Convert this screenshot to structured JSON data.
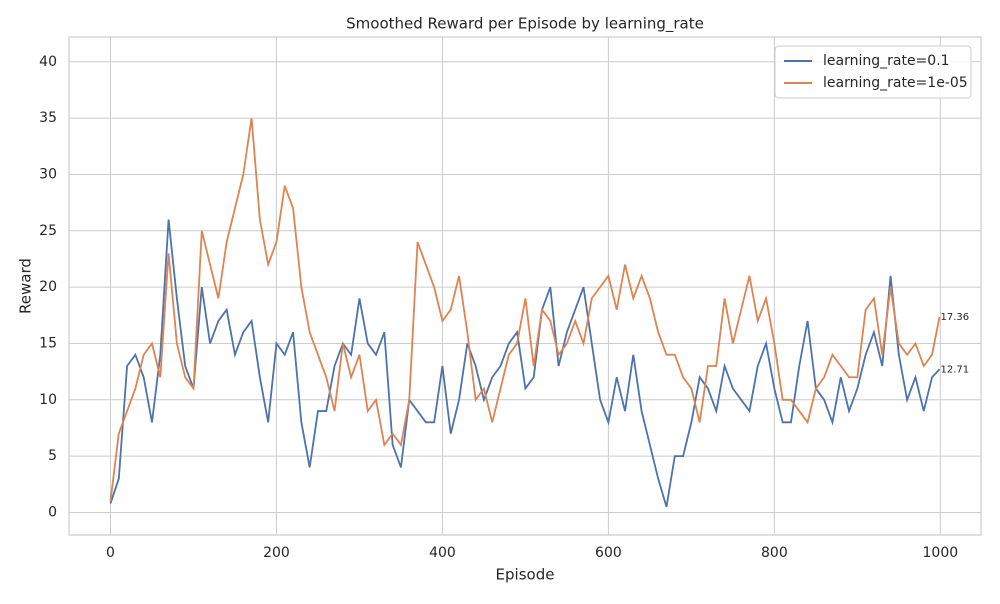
{
  "chart_data": {
    "type": "line",
    "title": "Smoothed Reward per Episode by learning_rate",
    "xlabel": "Episode",
    "ylabel": "Reward",
    "x": [
      0,
      10,
      20,
      30,
      40,
      50,
      60,
      70,
      80,
      90,
      100,
      110,
      120,
      130,
      140,
      150,
      160,
      170,
      180,
      190,
      200,
      210,
      220,
      230,
      240,
      250,
      260,
      270,
      280,
      290,
      300,
      310,
      320,
      330,
      340,
      350,
      360,
      370,
      380,
      390,
      400,
      410,
      420,
      430,
      440,
      450,
      460,
      470,
      480,
      490,
      500,
      510,
      520,
      530,
      540,
      550,
      560,
      570,
      580,
      590,
      600,
      610,
      620,
      630,
      640,
      650,
      660,
      670,
      680,
      690,
      700,
      710,
      720,
      730,
      740,
      750,
      760,
      770,
      780,
      790,
      800,
      810,
      820,
      830,
      840,
      850,
      860,
      870,
      880,
      890,
      900,
      910,
      920,
      930,
      940,
      950,
      960,
      970,
      980,
      990,
      999
    ],
    "series": [
      {
        "name": "learning_rate=0.1",
        "color": "#4c72b0",
        "values": [
          0.8,
          3,
          13,
          14,
          12,
          8,
          14,
          26,
          19,
          13,
          11,
          20,
          15,
          17,
          18,
          14,
          16,
          17,
          12,
          8,
          15,
          14,
          16,
          8,
          4,
          9,
          9,
          13,
          15,
          14,
          19,
          15,
          14,
          16,
          6,
          4,
          10,
          9,
          8,
          8,
          13,
          7,
          10,
          15,
          13,
          10,
          12,
          13,
          15,
          16,
          11,
          12,
          18,
          20,
          13,
          16,
          18,
          20,
          15,
          10,
          8,
          12,
          9,
          14,
          9,
          6,
          3,
          0.5,
          5,
          5,
          8,
          12,
          11,
          9,
          13,
          11,
          10,
          9,
          13,
          15,
          11,
          8,
          8,
          13,
          17,
          11,
          10,
          8,
          12,
          9,
          11,
          14,
          16,
          13,
          21,
          14,
          10,
          12,
          9,
          12,
          12.71
        ]
      },
      {
        "name": "learning_rate=1e-05",
        "color": "#dd8452",
        "values": [
          1,
          7,
          9,
          11,
          14,
          15,
          12,
          23,
          15,
          12,
          11,
          25,
          22,
          19,
          24,
          27,
          30,
          35,
          26,
          22,
          24,
          29,
          27,
          20,
          16,
          14,
          12,
          9,
          15,
          12,
          14,
          9,
          10,
          6,
          7,
          6,
          10,
          24,
          22,
          20,
          17,
          18,
          21,
          16,
          10,
          11,
          8,
          11,
          14,
          15,
          19,
          13,
          18,
          17,
          14,
          15,
          17,
          15,
          19,
          20,
          21,
          18,
          22,
          19,
          21,
          19,
          16,
          14,
          14,
          12,
          11,
          8,
          13,
          13,
          19,
          15,
          18,
          21,
          17,
          19,
          15,
          10,
          10,
          9,
          8,
          11,
          12,
          14,
          13,
          12,
          12,
          18,
          19,
          14,
          20,
          15,
          14,
          15,
          13,
          14,
          17.36
        ]
      }
    ],
    "xlim": [
      -50,
      1049
    ],
    "ylim": [
      -2.0,
      42.2
    ],
    "xticks": [
      0,
      200,
      400,
      600,
      800,
      1000
    ],
    "yticks": [
      0,
      5,
      10,
      15,
      20,
      25,
      30,
      35,
      40
    ],
    "grid": true,
    "legend": "upper right",
    "end_labels": true
  }
}
